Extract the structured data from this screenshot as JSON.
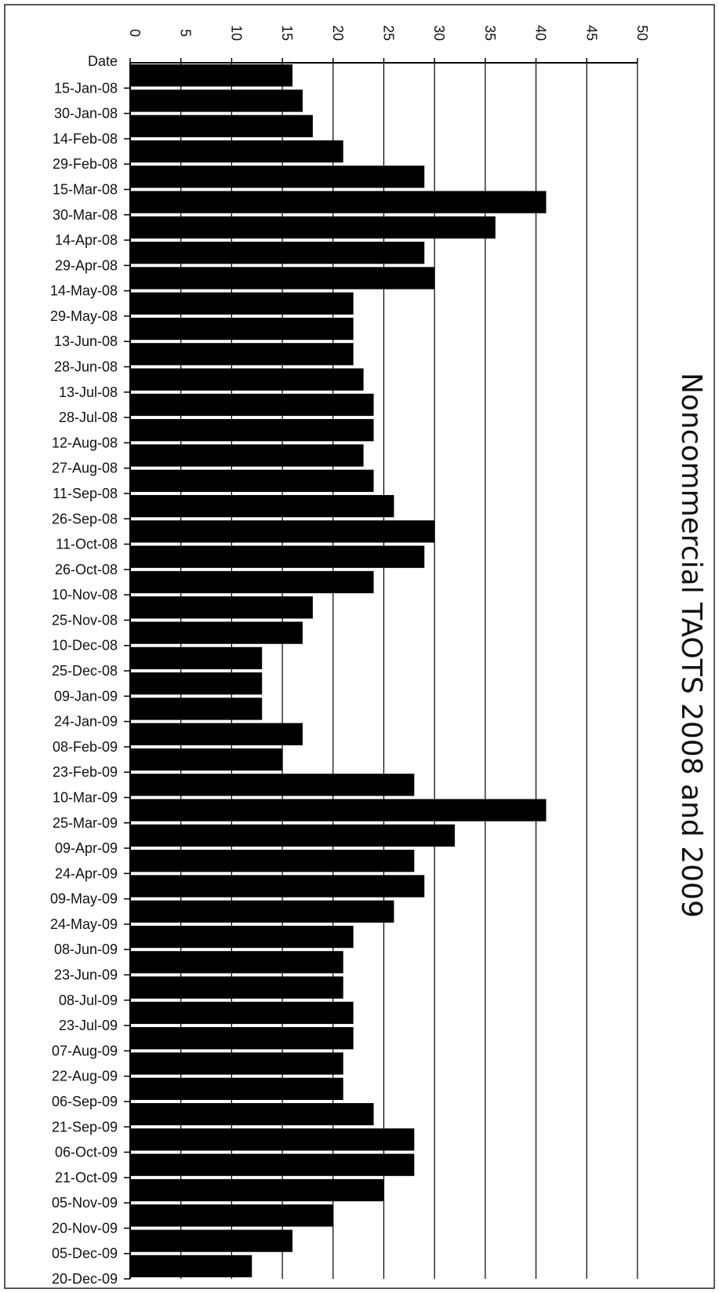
{
  "chart_data": {
    "type": "bar",
    "orientation": "horizontal",
    "title": "Noncommercial TAOTS 2008 and 2009",
    "category_header": "Date",
    "categories": [
      "15-Jan-08",
      "30-Jan-08",
      "14-Feb-08",
      "29-Feb-08",
      "15-Mar-08",
      "30-Mar-08",
      "14-Apr-08",
      "29-Apr-08",
      "14-May-08",
      "29-May-08",
      "13-Jun-08",
      "28-Jun-08",
      "13-Jul-08",
      "28-Jul-08",
      "12-Aug-08",
      "27-Aug-08",
      "11-Sep-08",
      "26-Sep-08",
      "11-Oct-08",
      "26-Oct-08",
      "10-Nov-08",
      "25-Nov-08",
      "10-Dec-08",
      "25-Dec-08",
      "09-Jan-09",
      "24-Jan-09",
      "08-Feb-09",
      "23-Feb-09",
      "10-Mar-09",
      "25-Mar-09",
      "09-Apr-09",
      "24-Apr-09",
      "09-May-09",
      "24-May-09",
      "08-Jun-09",
      "23-Jun-09",
      "08-Jul-09",
      "23-Jul-09",
      "07-Aug-09",
      "22-Aug-09",
      "06-Sep-09",
      "21-Sep-09",
      "06-Oct-09",
      "21-Oct-09",
      "05-Nov-09",
      "20-Nov-09",
      "05-Dec-09",
      "20-Dec-09"
    ],
    "values": [
      16,
      17,
      18,
      21,
      29,
      41,
      36,
      29,
      30,
      22,
      22,
      22,
      23,
      24,
      24,
      23,
      24,
      26,
      30,
      29,
      24,
      18,
      17,
      13,
      13,
      13,
      17,
      15,
      28,
      41,
      32,
      28,
      29,
      26,
      22,
      21,
      21,
      22,
      22,
      21,
      21,
      24,
      28,
      28,
      25,
      20,
      16,
      12
    ],
    "xlim": [
      0,
      50
    ],
    "xticks": [
      0,
      5,
      10,
      15,
      20,
      25,
      30,
      35,
      40,
      45,
      50
    ],
    "grid": true,
    "bar_color": "#000000"
  }
}
